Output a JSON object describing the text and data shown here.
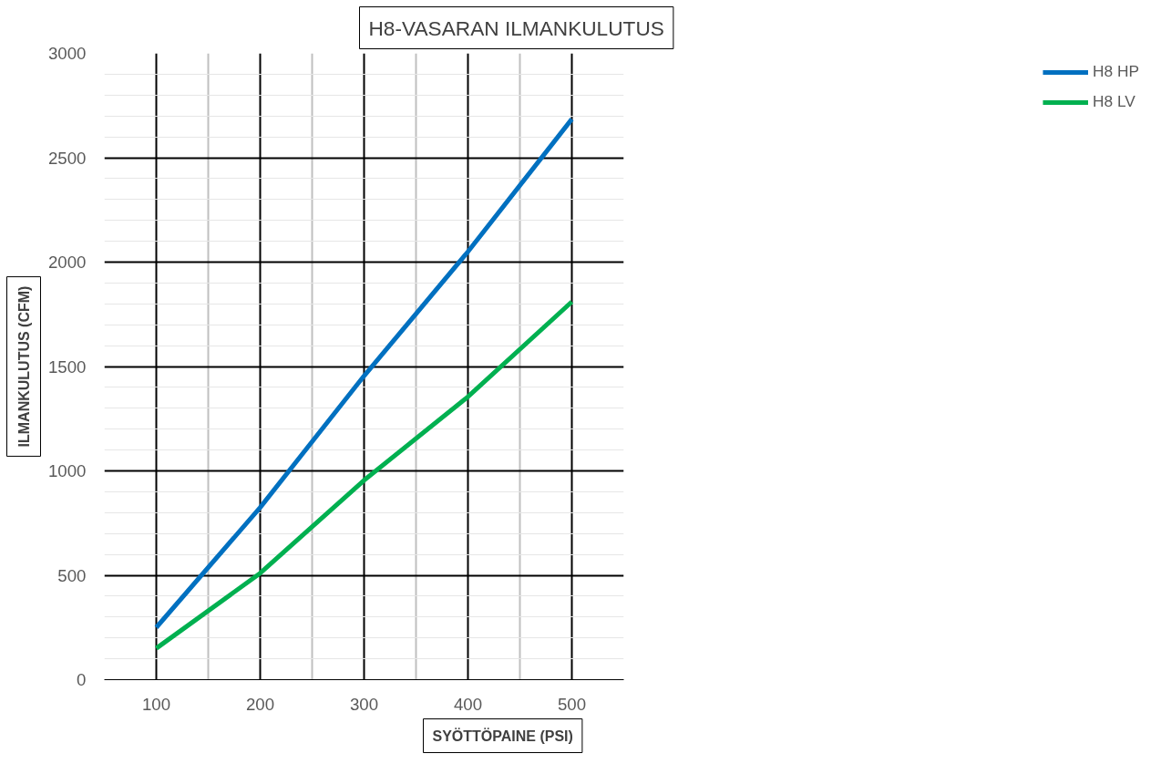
{
  "chart_data": {
    "type": "line",
    "title": "H8-VASARAN ILMANKULUTUS",
    "xlabel": "SYÖTTÖPAINE (PSI)",
    "ylabel": "ILMANKULUTUS (CFM)",
    "x": [
      100,
      200,
      300,
      400,
      500
    ],
    "series": [
      {
        "name": "H8 HP",
        "color": "#0070c0",
        "values": [
          250,
          825,
          1455,
          2050,
          2685
        ]
      },
      {
        "name": "H8 LV",
        "color": "#00b050",
        "values": [
          150,
          510,
          955,
          1355,
          1810
        ]
      }
    ],
    "xlim": [
      50,
      550
    ],
    "xticks": [
      100,
      200,
      300,
      400,
      500
    ],
    "ylim": [
      0,
      3000
    ],
    "yticks": [
      0,
      500,
      1000,
      1500,
      2000,
      2500,
      3000
    ],
    "grid": true,
    "legend": "right",
    "marker": "none",
    "line_style": "solid"
  }
}
